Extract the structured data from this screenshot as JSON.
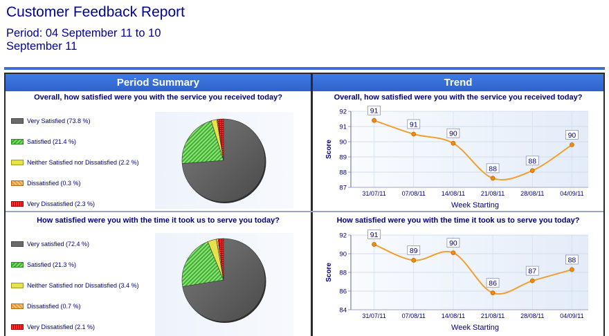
{
  "report": {
    "title": "Customer Feedback Report",
    "period": "Period: 04 September 11 to 10 September 11"
  },
  "headers": {
    "left": "Period Summary",
    "right": "Trend"
  },
  "colors": {
    "header_blue": "#3b6fd6",
    "very_satisfied": "#6b6b6b",
    "satisfied": "#4cbb3a",
    "neutral": "#e8e24a",
    "dissatisfied": "#f0a848",
    "very_dissatisfied": "#e01010",
    "trend_line": "#f0a030"
  },
  "chart_data": [
    {
      "type": "pie",
      "title": "Overall, how satisfied were you with the service you received today?",
      "legend_placement": "left",
      "slices": [
        {
          "label": "Very Satisfied (73.8 %)",
          "value": 73.8
        },
        {
          "label": "Satisfied (21.4 %)",
          "value": 21.4
        },
        {
          "label": "Neither Satisfied nor Dissatisfied (2.2 %)",
          "value": 2.2
        },
        {
          "label": "Dissatisfied (0.3 %)",
          "value": 0.3
        },
        {
          "label": "Very Dissatisfied (2.3 %)",
          "value": 2.3
        }
      ]
    },
    {
      "type": "line",
      "title": "Overall, how satisfied were you with the service you received today?",
      "xlabel": "Week Starting",
      "ylabel": "Score",
      "ylim": [
        87,
        92
      ],
      "yticks": [
        "87",
        "88",
        "89",
        "90",
        "91",
        "92"
      ],
      "grid": true,
      "categories": [
        "31/07/11",
        "07/08/11",
        "14/08/11",
        "21/08/11",
        "28/08/11",
        "04/09/11"
      ],
      "values": [
        91.4,
        90.5,
        89.9,
        87.6,
        88.1,
        89.8
      ],
      "labels": [
        "91",
        "91",
        "90",
        "88",
        "88",
        "90"
      ]
    },
    {
      "type": "pie",
      "title": "How satisfied were you with the time it took us to serve you today?",
      "legend_placement": "left",
      "slices": [
        {
          "label": "Very satisfied (72.4 %)",
          "value": 72.4
        },
        {
          "label": "Satisfied (21.3 %)",
          "value": 21.3
        },
        {
          "label": "Neither Satisfied nor Dissatisfied (3.4 %)",
          "value": 3.4
        },
        {
          "label": "Dissatisfied (0.7 %)",
          "value": 0.7
        },
        {
          "label": "Very Dissatisfied (2.1 %)",
          "value": 2.1
        }
      ]
    },
    {
      "type": "line",
      "title": "How satisfied were you with the time it took us to serve you today?",
      "xlabel": "Week Starting",
      "ylabel": "Score",
      "ylim": [
        84,
        92
      ],
      "yticks": [
        "84",
        "86",
        "88",
        "90",
        "92"
      ],
      "grid": true,
      "categories": [
        "31/07/11",
        "07/08/11",
        "14/08/11",
        "21/08/11",
        "28/08/11",
        "04/09/11"
      ],
      "values": [
        91.0,
        89.3,
        90.1,
        85.8,
        87.1,
        88.3
      ],
      "labels": [
        "91",
        "89",
        "90",
        "86",
        "87",
        "88"
      ]
    }
  ]
}
